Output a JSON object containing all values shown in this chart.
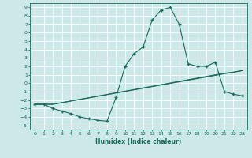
{
  "xlabel": "Humidex (Indice chaleur)",
  "background_color": "#cde8e8",
  "grid_color": "#ffffff",
  "line_color": "#1a6b5a",
  "xlim": [
    -0.5,
    23.5
  ],
  "ylim": [
    -5.5,
    9.5
  ],
  "xticks": [
    0,
    1,
    2,
    3,
    4,
    5,
    6,
    7,
    8,
    9,
    10,
    11,
    12,
    13,
    14,
    15,
    16,
    17,
    18,
    19,
    20,
    21,
    22,
    23
  ],
  "yticks": [
    -5,
    -4,
    -3,
    -2,
    -1,
    0,
    1,
    2,
    3,
    4,
    5,
    6,
    7,
    8,
    9
  ],
  "curve1_x": [
    0,
    1,
    2,
    3,
    4,
    5,
    6,
    7,
    8,
    9,
    10,
    11,
    12,
    13,
    14,
    15,
    16,
    17,
    18,
    19,
    20,
    21,
    22,
    23
  ],
  "curve1_y": [
    -2.5,
    -2.5,
    -3.0,
    -3.3,
    -3.6,
    -4.0,
    -4.2,
    -4.4,
    -4.5,
    -1.7,
    2.0,
    3.5,
    4.3,
    7.5,
    8.7,
    9.0,
    7.0,
    2.3,
    2.0,
    2.0,
    2.5,
    -1.0,
    -1.3,
    -1.5
  ],
  "curve2_x": [
    0,
    2,
    23
  ],
  "curve2_y": [
    -2.5,
    -2.5,
    1.5
  ],
  "curve3_x": [
    0,
    2,
    20,
    21,
    22,
    23
  ],
  "curve3_y": [
    -2.5,
    -2.5,
    1.0,
    1.2,
    1.3,
    1.5
  ],
  "marker": "+",
  "markersize": 3,
  "linewidth": 0.8
}
